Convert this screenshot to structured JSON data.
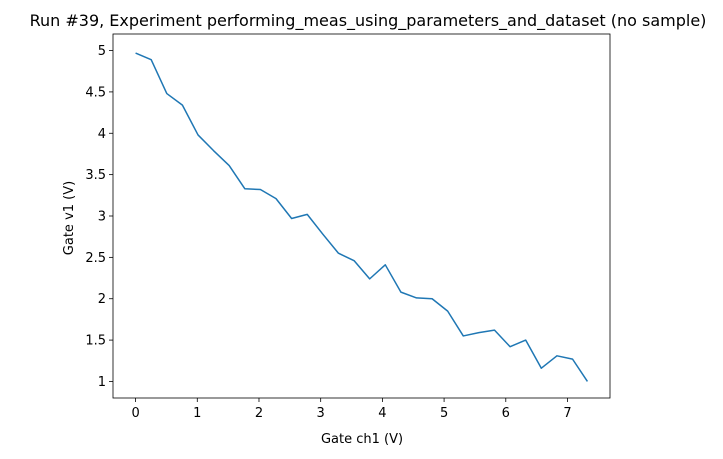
{
  "chart_data": {
    "type": "line",
    "title": "Run #39, Experiment performing_meas_using_parameters_and_dataset (no sample)",
    "xlabel": "Gate ch1 (V)",
    "ylabel": "Gate v1 (V)",
    "xlim": [
      -0.366,
      7.689
    ],
    "ylim": [
      0.8,
      5.2
    ],
    "xticks": [
      0,
      1,
      2,
      3,
      4,
      5,
      6,
      7
    ],
    "yticks": [
      1,
      1.5,
      2,
      2.5,
      3,
      3.5,
      4,
      4.5,
      5
    ],
    "x_tick_labels": [
      "0",
      "1",
      "2",
      "3",
      "4",
      "5",
      "6",
      "7"
    ],
    "y_tick_labels": [
      "1",
      "1.5",
      "2",
      "2.5",
      "3",
      "3.5",
      "4",
      "4.5",
      "5"
    ],
    "grid": false,
    "legend": false,
    "series": [
      {
        "color": "#1f77b4",
        "x": [
          0,
          0.253,
          0.506,
          0.759,
          1.012,
          1.264,
          1.517,
          1.77,
          2.023,
          2.276,
          2.529,
          2.782,
          3.035,
          3.288,
          3.541,
          3.794,
          4.047,
          4.3,
          4.553,
          4.806,
          5.058,
          5.311,
          5.564,
          5.817,
          6.07,
          6.323,
          6.576,
          6.829,
          7.082,
          7.323
        ],
        "y": [
          4.97,
          4.89,
          4.48,
          4.34,
          3.98,
          3.79,
          3.61,
          3.33,
          3.32,
          3.21,
          2.97,
          3.02,
          2.78,
          2.55,
          2.46,
          2.24,
          2.41,
          2.08,
          2.01,
          2.0,
          1.85,
          1.55,
          1.59,
          1.62,
          1.42,
          1.5,
          1.16,
          1.31,
          1.27,
          1.0
        ]
      }
    ]
  }
}
